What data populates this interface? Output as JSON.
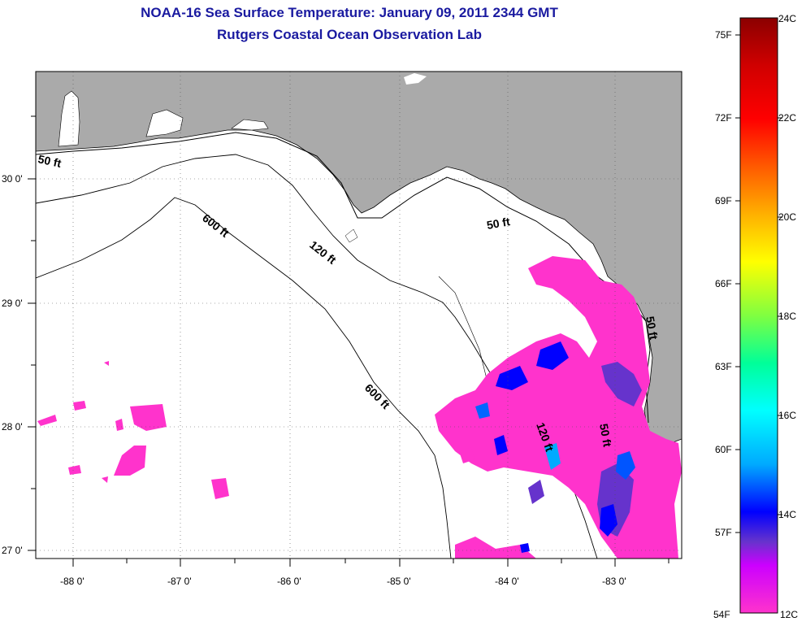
{
  "title": "NOAA-16 Sea Surface Temperature:  January 09, 2011 2344 GMT",
  "subtitle": "Rutgers Coastal Ocean Observation Lab",
  "map": {
    "lon_labels": [
      "-88 0'",
      "-87 0'",
      "-86 0'",
      "-85 0'",
      "-84 0'",
      "-83 0'"
    ],
    "lat_labels": [
      "30 0'",
      "29 0'",
      "28 0'",
      "27 0'"
    ],
    "contour_labels": [
      "50 ft",
      "50 ft",
      "600 ft",
      "120 ft",
      "600 ft",
      "120 ft",
      "50 ft",
      "50 ft"
    ],
    "land_color": "#aaaaaa",
    "sea_color": "#ffffff"
  },
  "colorbar": {
    "fahrenheit_labels": [
      "75F",
      "72F",
      "69F",
      "66F",
      "63F",
      "60F",
      "57F",
      "54F"
    ],
    "celsius_labels": [
      "24C",
      "22C",
      "20C",
      "18C",
      "16C",
      "14C",
      "12C"
    ],
    "range_c": [
      12,
      24
    ],
    "colors_top_to_bottom": [
      "#8b0000",
      "#ff0000",
      "#ff6600",
      "#ffcc00",
      "#ffff00",
      "#99ff33",
      "#00ff66",
      "#00ffcc",
      "#00ccff",
      "#0066ff",
      "#0000ff",
      "#6633cc",
      "#ff00ff",
      "#ff33cc"
    ]
  }
}
